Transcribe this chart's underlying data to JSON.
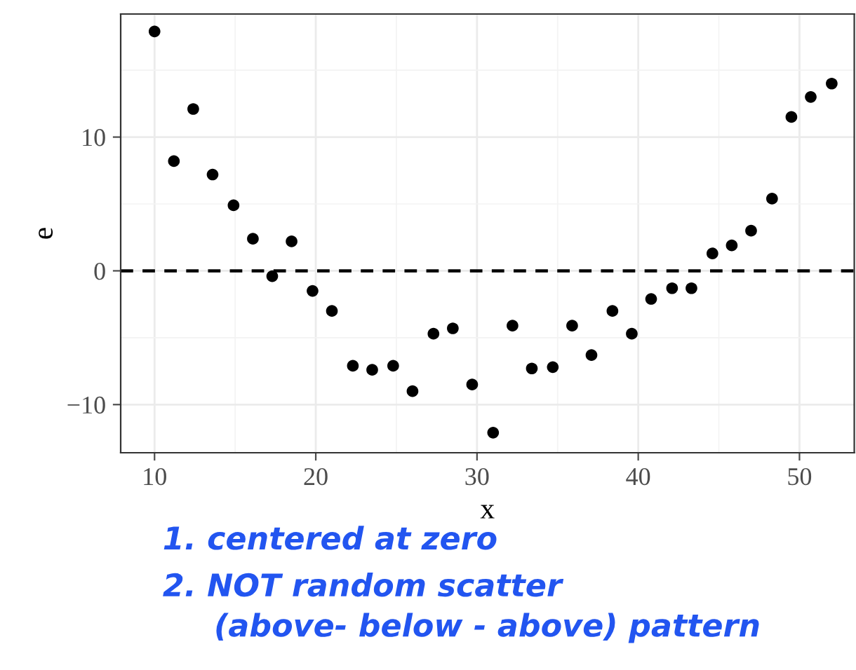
{
  "chart_data": {
    "type": "scatter",
    "xlabel": "x",
    "ylabel": "e",
    "x": [
      10,
      11.2,
      12.4,
      13.6,
      14.9,
      16.1,
      17.3,
      18.5,
      19.8,
      21.0,
      22.3,
      23.5,
      24.8,
      26.0,
      27.3,
      28.5,
      29.7,
      31.0,
      32.2,
      33.4,
      34.7,
      35.9,
      37.1,
      38.4,
      39.6,
      40.8,
      42.1,
      43.3,
      44.6,
      45.8,
      47.0,
      48.3,
      49.5,
      50.7,
      52.0
    ],
    "values": [
      17.9,
      8.2,
      12.1,
      7.2,
      4.9,
      2.4,
      -0.4,
      2.2,
      -1.5,
      -3.0,
      -7.1,
      -7.4,
      -7.1,
      -9.0,
      -4.7,
      -4.3,
      -8.5,
      -12.1,
      -4.1,
      -7.3,
      -7.2,
      -4.1,
      -6.3,
      -3.0,
      -4.7,
      -2.1,
      -1.3,
      -1.3,
      1.3,
      1.9,
      3.0,
      5.4,
      11.5,
      13.0,
      14.0
    ],
    "color": "#000000",
    "marker": "circle",
    "xlim": [
      7.9,
      53.4
    ],
    "ylim": [
      -13.6,
      19.2
    ],
    "xticks": [
      10,
      20,
      30,
      40,
      50
    ],
    "yticks": [
      -10,
      0,
      10
    ],
    "grid": true,
    "ref_lines": [
      {
        "axis": "y",
        "value": 0,
        "color": "#000000",
        "line_style": "dashed"
      }
    ],
    "annotations": [
      "1. centered at zero",
      "2. NOT random scatter",
      "(above- below - above) pattern"
    ]
  }
}
